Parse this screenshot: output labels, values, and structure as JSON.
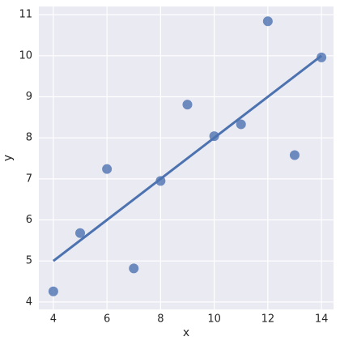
{
  "chart_data": {
    "type": "scatter",
    "x_label": "x",
    "y_label": "y",
    "series": [
      {
        "x": [
          10,
          8,
          13,
          9,
          11,
          14,
          6,
          4,
          12,
          7,
          5
        ],
        "values": [
          8.04,
          6.95,
          7.58,
          8.81,
          8.33,
          9.96,
          7.24,
          4.26,
          10.84,
          4.82,
          5.68
        ],
        "color": "#4c72b0"
      }
    ],
    "fit_line": {
      "x": [
        4,
        14
      ],
      "values": [
        5,
        10
      ],
      "color": "#4c72b0"
    },
    "xlim": [
      3.46,
      14.45
    ],
    "ylim": [
      3.82,
      11.2
    ],
    "xticks": [
      4,
      6,
      8,
      10,
      12,
      14
    ],
    "yticks": [
      4,
      5,
      6,
      7,
      8,
      9,
      10,
      11
    ],
    "grid": true,
    "background": "#eaeaf2"
  }
}
